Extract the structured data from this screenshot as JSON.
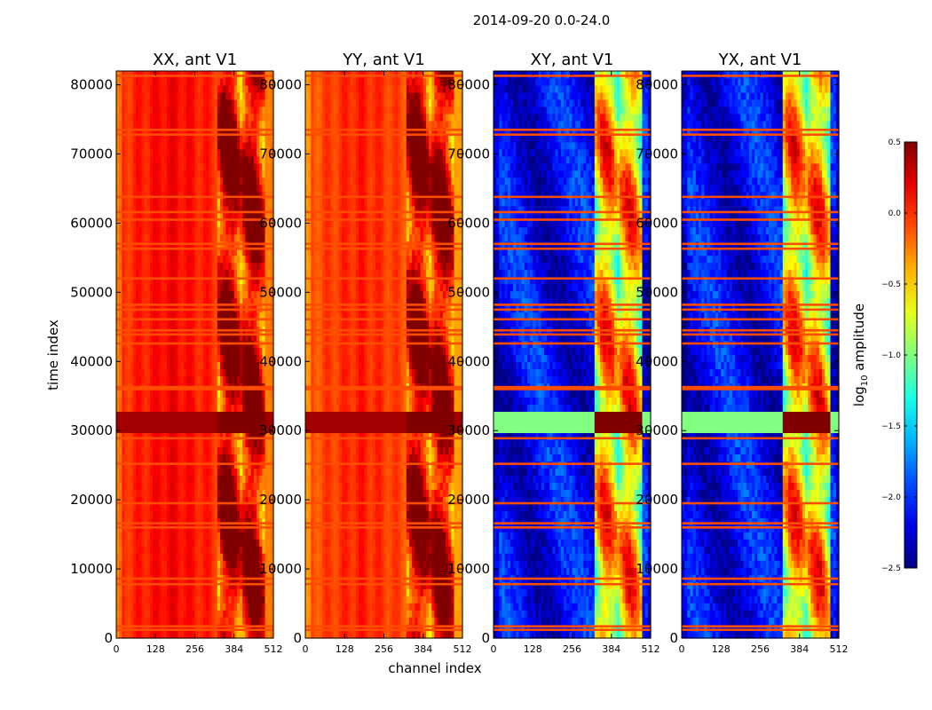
{
  "chart_data": {
    "type": "heatmap",
    "title": "2014-09-20 0.0-24.0",
    "xlabel": "channel index",
    "ylabel": "time index",
    "xlim": [
      0,
      512
    ],
    "ylim": [
      0,
      82000
    ],
    "xticks": [
      0,
      128,
      256,
      384,
      512
    ],
    "yticks": [
      0,
      10000,
      20000,
      30000,
      40000,
      50000,
      60000,
      70000,
      80000
    ],
    "colormap": "jet",
    "panels": [
      {
        "title": "XX, ant V1",
        "base": 0.15,
        "pattern": "parallel",
        "band_peak": 0.5
      },
      {
        "title": "YY, ant V1",
        "base": 0.05,
        "pattern": "parallel",
        "band_peak": 0.5
      },
      {
        "title": "XY, ant V1",
        "base": -2.15,
        "pattern": "cross",
        "band_peak": 0.5
      },
      {
        "title": "YX, ant V1",
        "base": -2.15,
        "pattern": "cross",
        "band_peak": 0.5
      }
    ],
    "active_band_channels": [
      330,
      480
    ],
    "flagged_time_indices": [
      1200,
      1700,
      7800,
      8600,
      16000,
      16600,
      19500,
      25200,
      28900,
      36000,
      36300,
      42600,
      43900,
      44500,
      46100,
      47500,
      48200,
      52000,
      56300,
      57000,
      60500,
      61600,
      63800,
      72800,
      73500,
      81300
    ],
    "rfi_time_range": [
      29800,
      32600
    ],
    "colorbar": {
      "label": "log10 amplitude",
      "label_main": "log",
      "label_sub": "10",
      "label_rest": " amplitude",
      "min": -2.5,
      "max": 0.5,
      "ticks": [
        0.5,
        0.0,
        -0.5,
        -1.0,
        -1.5,
        -2.0,
        -2.5
      ],
      "tick_labels": [
        "0.5",
        "0.0",
        "−0.5",
        "−1.0",
        "−1.5",
        "−2.0",
        "−2.5"
      ]
    }
  }
}
